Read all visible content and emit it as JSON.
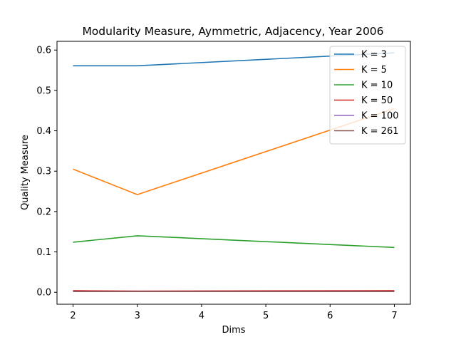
{
  "chart_data": {
    "type": "line",
    "title": "Modularity Measure, Aymmetric, Adjacency, Year 2006",
    "xlabel": "Dims",
    "ylabel": "Quality Measure",
    "x": [
      2,
      3,
      7
    ],
    "xticks": [
      2,
      3,
      4,
      5,
      6,
      7
    ],
    "yticks": [
      "0.0",
      "0.1",
      "0.2",
      "0.3",
      "0.4",
      "0.5",
      "0.6"
    ],
    "xlim": [
      1.75,
      7.25
    ],
    "ylim": [
      -0.0296,
      0.6216
    ],
    "grid": false,
    "legend_position": "top-right",
    "series": [
      {
        "name": "K = 3",
        "color": "#1f77b4",
        "values": [
          0.561,
          0.561,
          0.593
        ]
      },
      {
        "name": "K = 5",
        "color": "#ff7f0e",
        "values": [
          0.305,
          0.242,
          0.455
        ]
      },
      {
        "name": "K = 10",
        "color": "#2ca02c",
        "values": [
          0.124,
          0.14,
          0.111
        ]
      },
      {
        "name": "K = 50",
        "color": "#d62728",
        "values": [
          0.004,
          0.003,
          0.004
        ]
      },
      {
        "name": "K = 100",
        "color": "#9467bd",
        "values": [
          0.002,
          0.002,
          0.002
        ]
      },
      {
        "name": "K = 261",
        "color": "#8c564b",
        "values": [
          0.002,
          0.002,
          0.002
        ]
      }
    ]
  }
}
